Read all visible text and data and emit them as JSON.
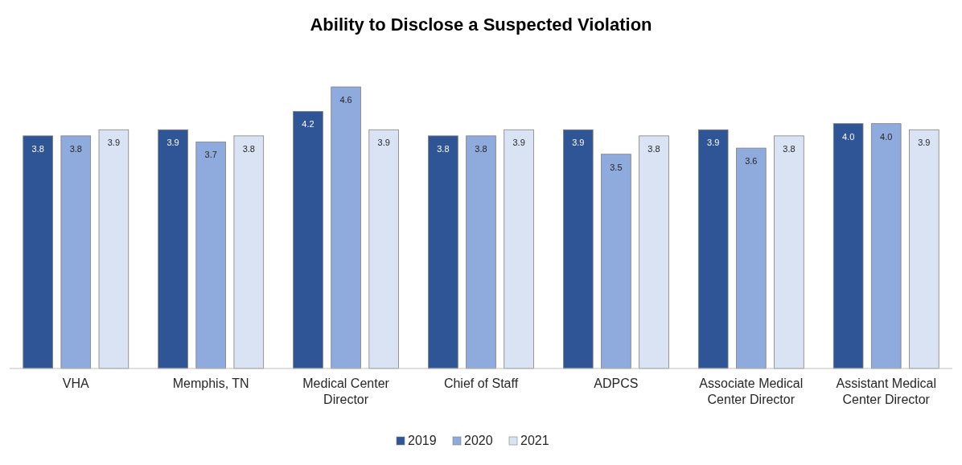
{
  "chart_data": {
    "type": "bar",
    "title": "Ability to Disclose a Suspected Violation",
    "categories": [
      "VHA",
      "Memphis, TN",
      "Medical Center Director",
      "Chief of Staff",
      "ADPCS",
      "Associate Medical Center Director",
      "Assistant Medical Center Director"
    ],
    "series": [
      {
        "name": "2019",
        "color": "#2f5597",
        "values": [
          3.8,
          3.9,
          4.2,
          3.8,
          3.9,
          3.9,
          4.0
        ],
        "value_labels": [
          "3.8",
          "3.9",
          "4.2",
          "3.8",
          "3.9",
          "3.9",
          "4.0"
        ]
      },
      {
        "name": "2020",
        "color": "#8faadc",
        "values": [
          3.8,
          3.7,
          4.6,
          3.8,
          3.5,
          3.6,
          4.0
        ],
        "value_labels": [
          "3.8",
          "3.7",
          "4.6",
          "3.8",
          "3.5",
          "3.6",
          "4.0"
        ]
      },
      {
        "name": "2021",
        "color": "#dae3f3",
        "values": [
          3.9,
          3.8,
          3.9,
          3.9,
          3.8,
          3.8,
          3.9
        ],
        "value_labels": [
          "3.9",
          "3.8",
          "3.9",
          "3.9",
          "3.8",
          "3.8",
          "3.9"
        ]
      }
    ],
    "legend": "bottom"
  }
}
